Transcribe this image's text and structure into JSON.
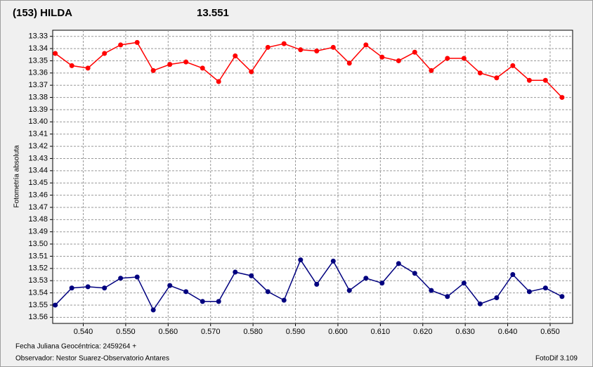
{
  "chart_data": {
    "type": "line",
    "title": "(153) HILDA",
    "title_color": "#ff0000",
    "subtitle": "13.551",
    "subtitle_color": "#1a237e",
    "y_label": "Fotometría absoluta",
    "x_label": "Fecha Juliana Geocéntrica: 2459264 +",
    "annotations": [
      "Observador: Nestor Suarez-Observatorio Antares",
      "FotoDif 3.109"
    ],
    "x": [
      0.5334,
      0.5373,
      0.5411,
      0.545,
      0.5488,
      0.5527,
      0.5565,
      0.5604,
      0.5642,
      0.5681,
      0.5719,
      0.5758,
      0.5796,
      0.5835,
      0.5873,
      0.5912,
      0.595,
      0.5989,
      0.6027,
      0.6066,
      0.6104,
      0.6143,
      0.6181,
      0.622,
      0.6258,
      0.6297,
      0.6335,
      0.6374,
      0.6412,
      0.6451,
      0.6489,
      0.6528
    ],
    "series": [
      {
        "color": "#ff0000",
        "values": [
          13.344,
          13.354,
          13.356,
          13.344,
          13.337,
          13.335,
          13.358,
          13.353,
          13.351,
          13.356,
          13.367,
          13.346,
          13.359,
          13.339,
          13.336,
          13.341,
          13.342,
          13.339,
          13.352,
          13.337,
          13.347,
          13.35,
          13.343,
          13.358,
          13.348,
          13.348,
          13.36,
          13.364,
          13.354,
          13.366,
          13.366,
          13.38
        ]
      },
      {
        "color": "#00007f",
        "values": [
          13.55,
          13.536,
          13.535,
          13.536,
          13.528,
          13.527,
          13.554,
          13.534,
          13.539,
          13.547,
          13.547,
          13.523,
          13.526,
          13.539,
          13.546,
          13.513,
          13.533,
          13.514,
          13.538,
          13.528,
          13.532,
          13.516,
          13.524,
          13.538,
          13.543,
          13.532,
          13.549,
          13.544,
          13.525,
          13.539,
          13.536,
          13.543
        ]
      }
    ],
    "xlim": [
      0.5328,
      0.6553
    ],
    "xticks": [
      {
        "value": 0.54,
        "label": "0.540"
      },
      {
        "value": 0.55,
        "label": "0.550"
      },
      {
        "value": 0.56,
        "label": "0.560"
      },
      {
        "value": 0.57,
        "label": "0.570"
      },
      {
        "value": 0.58,
        "label": "0.580"
      },
      {
        "value": 0.59,
        "label": "0.590"
      },
      {
        "value": 0.6,
        "label": "0.600"
      },
      {
        "value": 0.61,
        "label": "0.610"
      },
      {
        "value": 0.62,
        "label": "0.620"
      },
      {
        "value": 0.63,
        "label": "0.630"
      },
      {
        "value": 0.64,
        "label": "0.640"
      },
      {
        "value": 0.65,
        "label": "0.650"
      }
    ],
    "ylim": [
      13.325,
      13.565
    ],
    "y_inverted": true,
    "yticks": [
      13.33,
      13.34,
      13.35,
      13.36,
      13.37,
      13.38,
      13.39,
      {
        "value": 13.4,
        "label": "13.40"
      },
      13.41,
      13.42,
      13.43,
      13.44,
      13.45,
      13.46,
      13.47,
      13.48,
      13.49,
      {
        "value": 13.5,
        "label": "13.50"
      },
      13.51,
      13.52,
      13.53,
      13.54,
      13.55,
      13.56
    ],
    "grid": true
  }
}
